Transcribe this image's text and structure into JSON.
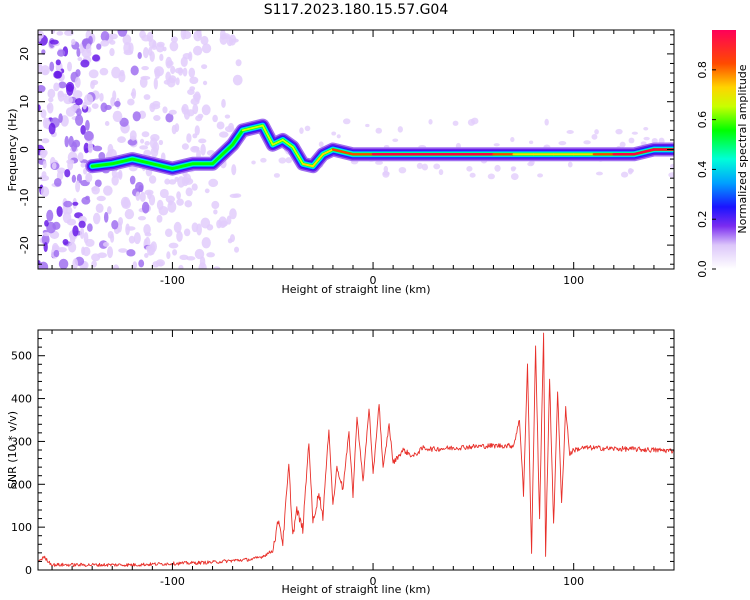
{
  "figure_title": "S117.2023.180.15.57.G04",
  "colors": {
    "snr_line": "#e8302a",
    "ridge_palette": [
      "#ffffff",
      "#e2cdfb",
      "#a070f0",
      "#6a1ce8",
      "#1c18ff",
      "#00b8ff",
      "#00ffd0",
      "#00ff00",
      "#d4ff00",
      "#ffd800",
      "#ff4400",
      "#ff0040"
    ]
  },
  "chart_data": [
    {
      "type": "heatmap",
      "ylabel": "Frequency (Hz)",
      "xlabel": "Height of straight line (km)",
      "xlim": [
        -167,
        150
      ],
      "ylim": [
        -25,
        25
      ],
      "x_ticks": [
        -100,
        0,
        100
      ],
      "y_ticks": [
        -20,
        -10,
        0,
        10,
        20
      ],
      "colorbar": {
        "label": "Normalized spectral amplitude",
        "range": [
          0.0,
          0.96
        ],
        "ticks": [
          "0.0",
          "0.2",
          "0.4",
          "0.6",
          "0.8"
        ]
      },
      "ridge": {
        "x": [
          -140,
          -130,
          -120,
          -110,
          -100,
          -90,
          -80,
          -70,
          -65,
          -55,
          -50,
          -45,
          -40,
          -35,
          -30,
          -25,
          -20,
          -10,
          0,
          20,
          40,
          60,
          70,
          80,
          90,
          100,
          110,
          120,
          130,
          140,
          150
        ],
        "y": [
          -3.5,
          -3.0,
          -2.0,
          -3.0,
          -4.0,
          -3.0,
          -3.0,
          1.0,
          4.0,
          5.0,
          1.0,
          2.0,
          0.5,
          -3.0,
          -3.5,
          -1.0,
          0.0,
          -1.0,
          -1.0,
          -1.0,
          -1.0,
          -1.0,
          -1.0,
          -1.0,
          -1.0,
          -1.0,
          -1.0,
          -1.0,
          -1.0,
          0.0,
          0.0
        ],
        "amplitude": [
          0.25,
          0.3,
          0.3,
          0.35,
          0.35,
          0.4,
          0.45,
          0.45,
          0.5,
          0.55,
          0.6,
          0.55,
          0.5,
          0.55,
          0.65,
          0.7,
          0.8,
          0.85,
          0.9,
          0.92,
          0.92,
          0.92,
          0.75,
          0.6,
          0.65,
          0.7,
          0.8,
          0.92,
          0.92,
          0.95,
          0.95
        ]
      }
    },
    {
      "type": "line",
      "ylabel": "SNR (10 * v/v)",
      "xlabel": "Height of straight line (km)",
      "xlim": [
        -167,
        150
      ],
      "ylim": [
        0,
        560
      ],
      "x_ticks": [
        -100,
        0,
        100
      ],
      "y_ticks": [
        0,
        100,
        200,
        300,
        400,
        500
      ],
      "series": [
        {
          "x": [
            -167,
            -164,
            -160,
            -140,
            -120,
            -100,
            -80,
            -70,
            -60,
            -55,
            -50,
            -47,
            -45,
            -42,
            -40,
            -38,
            -35,
            -32,
            -30,
            -27,
            -25,
            -22,
            -20,
            -18,
            -15,
            -12,
            -10,
            -8,
            -5,
            -2,
            0,
            3,
            5,
            8,
            10,
            15,
            20,
            25,
            30,
            40,
            50,
            60,
            70,
            73,
            75,
            77,
            79,
            81,
            83,
            85,
            86,
            88,
            90,
            92,
            94,
            96,
            98,
            100,
            105,
            110,
            120,
            130,
            140,
            150
          ],
          "y": [
            20,
            30,
            12,
            12,
            12,
            15,
            18,
            22,
            25,
            32,
            45,
            120,
            60,
            245,
            80,
            140,
            95,
            300,
            110,
            180,
            125,
            330,
            150,
            240,
            190,
            320,
            175,
            360,
            205,
            380,
            220,
            390,
            235,
            340,
            250,
            280,
            265,
            285,
            282,
            285,
            288,
            290,
            290,
            350,
            180,
            480,
            40,
            520,
            120,
            555,
            30,
            450,
            100,
            420,
            150,
            380,
            270,
            280,
            285,
            285,
            283,
            282,
            280,
            278
          ]
        }
      ]
    }
  ]
}
